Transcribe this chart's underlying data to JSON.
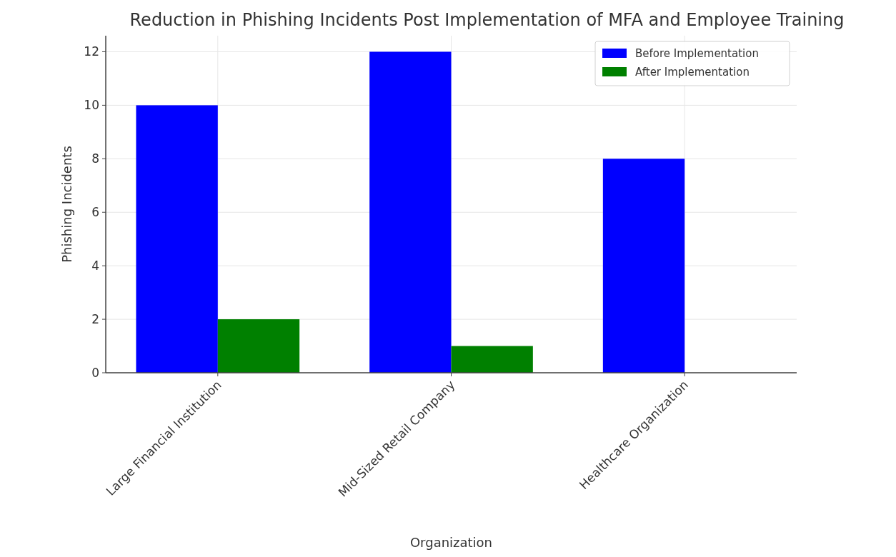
{
  "chart_data": {
    "type": "bar",
    "title": "Reduction in Phishing Incidents Post Implementation of MFA and Employee Training",
    "xlabel": "Organization",
    "ylabel": "Phishing Incidents",
    "categories": [
      "Large Financial Institution",
      "Mid-Sized Retail Company",
      "Healthcare Organization"
    ],
    "series": [
      {
        "name": "Before Implementation",
        "color": "#0000ff",
        "values": [
          10,
          12,
          8
        ]
      },
      {
        "name": "After Implementation",
        "color": "#008000",
        "values": [
          2,
          1,
          0
        ]
      }
    ],
    "ylim": [
      0,
      12.6
    ],
    "yticks": [
      0,
      2,
      4,
      6,
      8,
      10,
      12
    ],
    "grid": true,
    "legend": "top right"
  }
}
